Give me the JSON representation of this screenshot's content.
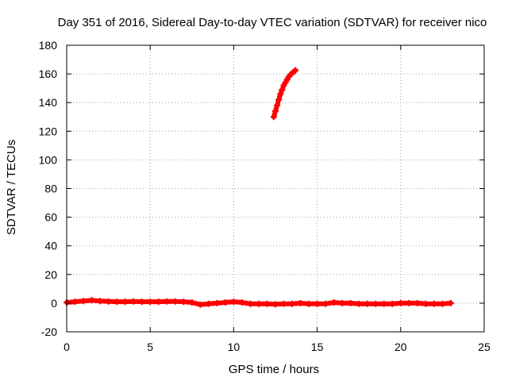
{
  "chart_data": {
    "type": "scatter",
    "title": "Day 351 of 2016, Sidereal Day-to-day VTEC variation (SDTVAR) for receiver nico",
    "xlabel": "GPS time / hours",
    "ylabel": "SDTVAR / TECUs",
    "xlim": [
      0,
      25
    ],
    "ylim": [
      -20,
      180
    ],
    "x_ticks": [
      "0",
      "5",
      "10",
      "15",
      "20",
      "25"
    ],
    "y_ticks": [
      "-20",
      "0",
      "20",
      "40",
      "60",
      "80",
      "100",
      "120",
      "140",
      "160",
      "180"
    ],
    "grid": true,
    "legend": "none",
    "colors": {
      "series": "#ff0000",
      "grid": "#a0a0a0",
      "axis": "#000000"
    },
    "series": [
      {
        "marker": "plus",
        "x": [
          0.0,
          0.5,
          1.0,
          1.5,
          2.0,
          2.5,
          3.0,
          3.5,
          4.0,
          4.5,
          5.0,
          5.5,
          6.0,
          6.5,
          7.0,
          7.5,
          8.0,
          8.5,
          9.0,
          9.5,
          10.0,
          10.5,
          11.0,
          11.5,
          12.0,
          12.5,
          13.0,
          13.5,
          14.0,
          14.5,
          15.0,
          15.5,
          16.0,
          16.5,
          17.0,
          17.5,
          18.0,
          18.5,
          19.0,
          19.5,
          20.0,
          20.5,
          21.0,
          21.5,
          22.0,
          22.5,
          23.0
        ],
        "y": [
          0.5,
          1.0,
          1.5,
          2.0,
          1.5,
          1.2,
          1.0,
          1.0,
          1.2,
          1.0,
          1.0,
          1.0,
          1.2,
          1.2,
          1.0,
          0.5,
          -1.0,
          -0.5,
          0.0,
          0.5,
          1.0,
          0.5,
          -0.5,
          -0.5,
          -0.5,
          -0.8,
          -0.5,
          -0.5,
          0.0,
          -0.5,
          -0.5,
          -0.5,
          0.5,
          0.0,
          0.0,
          -0.5,
          -0.5,
          -0.5,
          -0.5,
          -0.5,
          0.0,
          0.0,
          0.0,
          -0.5,
          -0.5,
          -0.5,
          0.0
        ]
      },
      {
        "marker": "plus",
        "x": [
          12.4,
          12.5,
          12.6,
          12.7,
          12.8,
          12.9,
          13.0,
          13.1,
          13.2,
          13.3,
          13.4,
          13.5,
          13.6,
          13.7
        ],
        "y": [
          130,
          134,
          138,
          142,
          146,
          149,
          152,
          154,
          156,
          158,
          159.5,
          160.5,
          161.5,
          162.5
        ]
      }
    ]
  }
}
